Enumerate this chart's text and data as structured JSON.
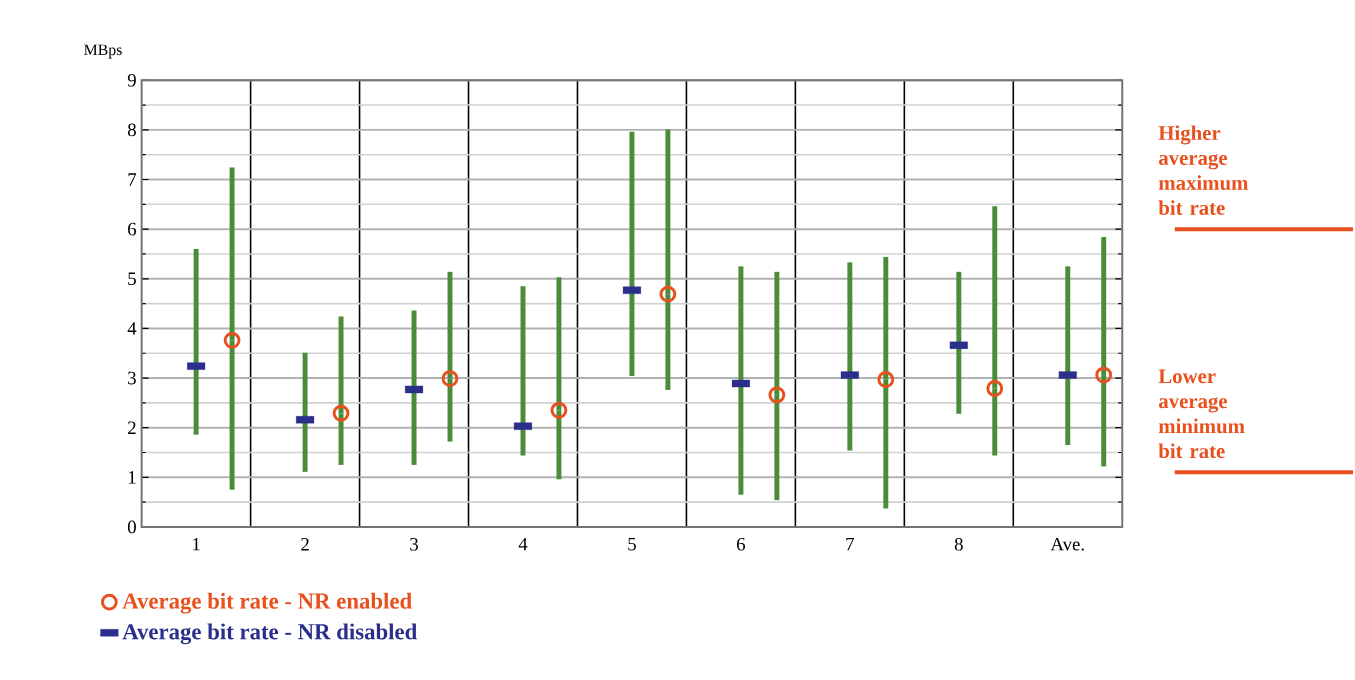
{
  "chart_data": {
    "type": "scatter",
    "ylabel": "MBps",
    "categories": [
      "1",
      "2",
      "3",
      "4",
      "5",
      "6",
      "7",
      "8",
      "Ave."
    ],
    "series": [
      {
        "name": "Average bit rate - NR enabled",
        "color": "#e8501e",
        "marker": "circle",
        "values": [
          3.76,
          2.29,
          2.99,
          2.35,
          4.69,
          2.66,
          2.97,
          2.79,
          3.06
        ],
        "errors": [
          [
            0.75,
            7.24
          ],
          [
            1.25,
            4.24
          ],
          [
            1.72,
            5.14
          ],
          [
            0.96,
            5.03
          ],
          [
            2.76,
            8.01
          ],
          [
            0.54,
            5.14
          ],
          [
            0.37,
            5.44
          ],
          [
            1.44,
            6.46
          ],
          [
            1.22,
            5.84
          ]
        ]
      },
      {
        "name": "Average bit rate - NR disabled",
        "color": "#2b2f8c",
        "marker": "square",
        "values": [
          3.24,
          2.16,
          2.77,
          2.03,
          4.77,
          2.89,
          3.06,
          3.66,
          3.06
        ],
        "errors": [
          [
            1.86,
            5.6
          ],
          [
            1.11,
            3.51
          ],
          [
            1.25,
            4.36
          ],
          [
            1.44,
            4.85
          ],
          [
            3.04,
            7.96
          ],
          [
            0.65,
            5.25
          ],
          [
            1.54,
            5.33
          ],
          [
            2.28,
            5.14
          ],
          [
            1.65,
            5.25
          ]
        ]
      }
    ],
    "ylim": [
      0,
      9
    ],
    "yticks": [
      0,
      1,
      2,
      3,
      4,
      5,
      6,
      7,
      8,
      9
    ],
    "grid": true,
    "legend": "bottom",
    "ref_lines": [
      {
        "axis": "y",
        "value": 6.0,
        "label": "Higher average maximum bit rate",
        "color": "#e8501e"
      },
      {
        "axis": "y",
        "value": 1.1,
        "label": "Lower average minimum bit rate",
        "color": "#e8501e"
      }
    ]
  }
}
